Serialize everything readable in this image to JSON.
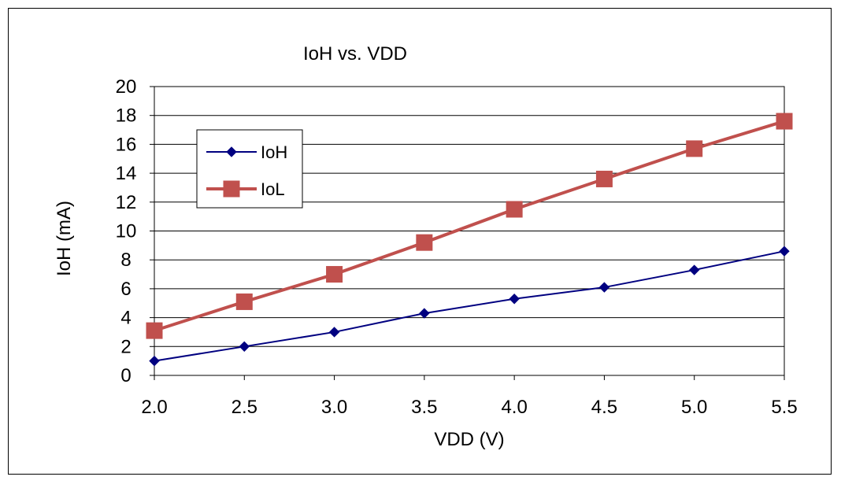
{
  "chart_data": {
    "type": "line",
    "title": "IoH vs. VDD",
    "xlabel": "VDD (V)",
    "ylabel": "IoH (mA)",
    "x": [
      2.0,
      2.5,
      3.0,
      3.5,
      4.0,
      4.5,
      5.0,
      5.5
    ],
    "x_tick_labels": [
      "2.0",
      "2.5",
      "3.0",
      "3.5",
      "4.0",
      "4.5",
      "5.0",
      "5.5"
    ],
    "y_tick_labels": [
      "0",
      "2",
      "4",
      "6",
      "8",
      "10",
      "12",
      "14",
      "16",
      "18",
      "20"
    ],
    "xlim": [
      2.0,
      5.5
    ],
    "ylim": [
      0,
      20
    ],
    "grid": "horizontal",
    "legend_position": "upper-left",
    "series": [
      {
        "name": "IoH",
        "color": "#000080",
        "marker": "diamond",
        "values": [
          1.0,
          2.0,
          3.0,
          4.3,
          5.3,
          6.1,
          7.3,
          8.6
        ]
      },
      {
        "name": "IoL",
        "color": "#C0504D",
        "marker": "square",
        "values": [
          3.1,
          5.1,
          7.0,
          9.2,
          11.5,
          13.6,
          15.7,
          17.6
        ]
      }
    ]
  }
}
